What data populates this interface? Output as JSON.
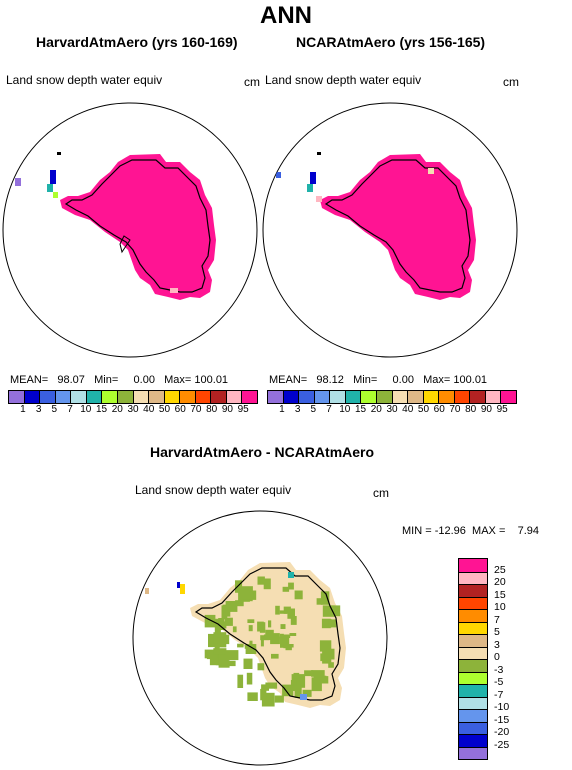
{
  "page": {
    "title": "ANN"
  },
  "panels": {
    "left": {
      "title": "HarvardAtmAero (yrs 160-169)",
      "variable": "Land snow depth water equiv",
      "units": "cm",
      "mean_label": "MEAN=",
      "mean": "98.07",
      "min_label": "Min=",
      "min": "0.00",
      "max_label": "Max=",
      "max": "100.01"
    },
    "right": {
      "title": "NCARAtmAero (yrs 156-165)",
      "variable": "Land snow depth water equiv",
      "units": "cm",
      "mean_label": "MEAN=",
      "mean": "98.12",
      "min_label": "Min=",
      "min": "0.00",
      "max_label": "Max=",
      "max": "100.01"
    },
    "diff": {
      "title": "HarvardAtmAero - NCARAtmAero",
      "variable": "Land snow depth water equiv",
      "units": "cm",
      "min_label": "MIN =",
      "min": "-12.96",
      "max_label": "MAX =",
      "max": "7.94"
    }
  },
  "colorbar_top": {
    "ticks": [
      "1",
      "3",
      "5",
      "7",
      "10",
      "15",
      "20",
      "30",
      "40",
      "50",
      "60",
      "70",
      "80",
      "90",
      "95"
    ],
    "colors": [
      "#9370db",
      "#0000cd",
      "#3a5fe0",
      "#6495ed",
      "#b0e0e6",
      "#20b2aa",
      "#adff2f",
      "#8db33a",
      "#f5deb3",
      "#deb887",
      "#ffd700",
      "#ff8c00",
      "#ff4500",
      "#b22222",
      "#ffb6c1",
      "#ff1493"
    ]
  },
  "colorbar_diff": {
    "ticks": [
      "25",
      "20",
      "15",
      "10",
      "7",
      "5",
      "3",
      "0",
      "-3",
      "-5",
      "-7",
      "-10",
      "-15",
      "-20",
      "-25"
    ],
    "colors": [
      "#ff1493",
      "#ffb6c1",
      "#b22222",
      "#ff4500",
      "#ff8c00",
      "#ffd700",
      "#deb887",
      "#f5deb3",
      "#8db33a",
      "#adff2f",
      "#20b2aa",
      "#b0e0e6",
      "#6495ed",
      "#3a5fe0",
      "#0000cd",
      "#9370db"
    ]
  },
  "map_colors": {
    "snow_fill": "#ff1493",
    "diff_positive_small": "#f5deb3",
    "diff_negative_small": "#8db33a",
    "coast": "#000000"
  }
}
